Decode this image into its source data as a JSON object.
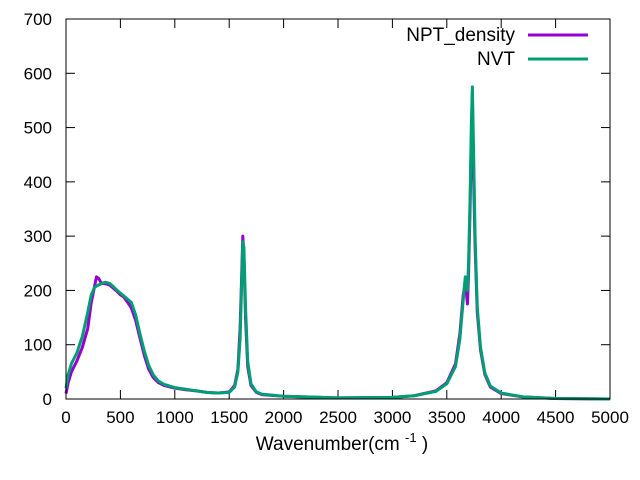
{
  "chart_data": {
    "type": "line",
    "title": "",
    "xlabel": "Wavenumber(cm",
    "xlabel_sup": "-1",
    "xlabel_tail": ")",
    "ylabel": "",
    "xlim": [
      0,
      5000
    ],
    "ylim": [
      0,
      700
    ],
    "x_ticks": [
      0,
      500,
      1000,
      1500,
      2000,
      2500,
      3000,
      3500,
      4000,
      4500,
      5000
    ],
    "y_ticks": [
      0,
      100,
      200,
      300,
      400,
      500,
      600,
      700
    ],
    "grid": false,
    "legend_position": "top-right",
    "series": [
      {
        "name": "NPT_density",
        "color": "#9400d3",
        "points": [
          [
            0,
            10
          ],
          [
            20,
            30
          ],
          [
            50,
            50
          ],
          [
            100,
            70
          ],
          [
            150,
            95
          ],
          [
            200,
            130
          ],
          [
            230,
            175
          ],
          [
            260,
            205
          ],
          [
            280,
            225
          ],
          [
            300,
            222
          ],
          [
            320,
            215
          ],
          [
            340,
            213
          ],
          [
            370,
            212
          ],
          [
            400,
            210
          ],
          [
            430,
            205
          ],
          [
            470,
            198
          ],
          [
            500,
            192
          ],
          [
            530,
            188
          ],
          [
            560,
            180
          ],
          [
            600,
            168
          ],
          [
            640,
            145
          ],
          [
            680,
            112
          ],
          [
            720,
            80
          ],
          [
            760,
            55
          ],
          [
            800,
            40
          ],
          [
            850,
            30
          ],
          [
            900,
            25
          ],
          [
            1000,
            20
          ],
          [
            1100,
            17
          ],
          [
            1200,
            15
          ],
          [
            1300,
            12
          ],
          [
            1400,
            11
          ],
          [
            1500,
            13
          ],
          [
            1550,
            25
          ],
          [
            1580,
            55
          ],
          [
            1600,
            130
          ],
          [
            1615,
            230
          ],
          [
            1625,
            300
          ],
          [
            1635,
            265
          ],
          [
            1650,
            150
          ],
          [
            1670,
            60
          ],
          [
            1700,
            25
          ],
          [
            1750,
            12
          ],
          [
            1800,
            8
          ],
          [
            2000,
            5
          ],
          [
            2500,
            2
          ],
          [
            3000,
            3
          ],
          [
            3200,
            6
          ],
          [
            3400,
            15
          ],
          [
            3500,
            30
          ],
          [
            3580,
            65
          ],
          [
            3620,
            120
          ],
          [
            3650,
            190
          ],
          [
            3670,
            215
          ],
          [
            3690,
            175
          ],
          [
            3700,
            230
          ],
          [
            3715,
            360
          ],
          [
            3725,
            480
          ],
          [
            3735,
            560
          ],
          [
            3745,
            420
          ],
          [
            3760,
            280
          ],
          [
            3780,
            160
          ],
          [
            3810,
            90
          ],
          [
            3850,
            45
          ],
          [
            3900,
            22
          ],
          [
            4000,
            10
          ],
          [
            4200,
            4
          ],
          [
            4500,
            1
          ],
          [
            5000,
            0
          ]
        ]
      },
      {
        "name": "NVT",
        "color": "#009e73",
        "points": [
          [
            0,
            20
          ],
          [
            20,
            45
          ],
          [
            50,
            65
          ],
          [
            100,
            85
          ],
          [
            150,
            115
          ],
          [
            200,
            160
          ],
          [
            230,
            190
          ],
          [
            260,
            205
          ],
          [
            280,
            208
          ],
          [
            300,
            210
          ],
          [
            330,
            213
          ],
          [
            360,
            215
          ],
          [
            400,
            213
          ],
          [
            430,
            208
          ],
          [
            470,
            200
          ],
          [
            500,
            195
          ],
          [
            530,
            190
          ],
          [
            560,
            185
          ],
          [
            600,
            178
          ],
          [
            640,
            155
          ],
          [
            680,
            120
          ],
          [
            720,
            88
          ],
          [
            760,
            62
          ],
          [
            800,
            45
          ],
          [
            850,
            33
          ],
          [
            900,
            27
          ],
          [
            1000,
            21
          ],
          [
            1100,
            18
          ],
          [
            1200,
            15
          ],
          [
            1300,
            12
          ],
          [
            1400,
            11
          ],
          [
            1500,
            12
          ],
          [
            1550,
            22
          ],
          [
            1580,
            50
          ],
          [
            1600,
            110
          ],
          [
            1615,
            215
          ],
          [
            1625,
            290
          ],
          [
            1635,
            280
          ],
          [
            1650,
            170
          ],
          [
            1670,
            70
          ],
          [
            1700,
            28
          ],
          [
            1750,
            13
          ],
          [
            1800,
            9
          ],
          [
            2000,
            5
          ],
          [
            2500,
            2
          ],
          [
            3000,
            3
          ],
          [
            3200,
            6
          ],
          [
            3400,
            14
          ],
          [
            3500,
            28
          ],
          [
            3580,
            60
          ],
          [
            3620,
            110
          ],
          [
            3650,
            180
          ],
          [
            3670,
            225
          ],
          [
            3690,
            200
          ],
          [
            3700,
            250
          ],
          [
            3715,
            380
          ],
          [
            3725,
            500
          ],
          [
            3735,
            575
          ],
          [
            3745,
            470
          ],
          [
            3760,
            300
          ],
          [
            3780,
            170
          ],
          [
            3810,
            95
          ],
          [
            3850,
            48
          ],
          [
            3900,
            24
          ],
          [
            4000,
            11
          ],
          [
            4200,
            4
          ],
          [
            4500,
            1
          ],
          [
            5000,
            0
          ]
        ]
      }
    ]
  }
}
